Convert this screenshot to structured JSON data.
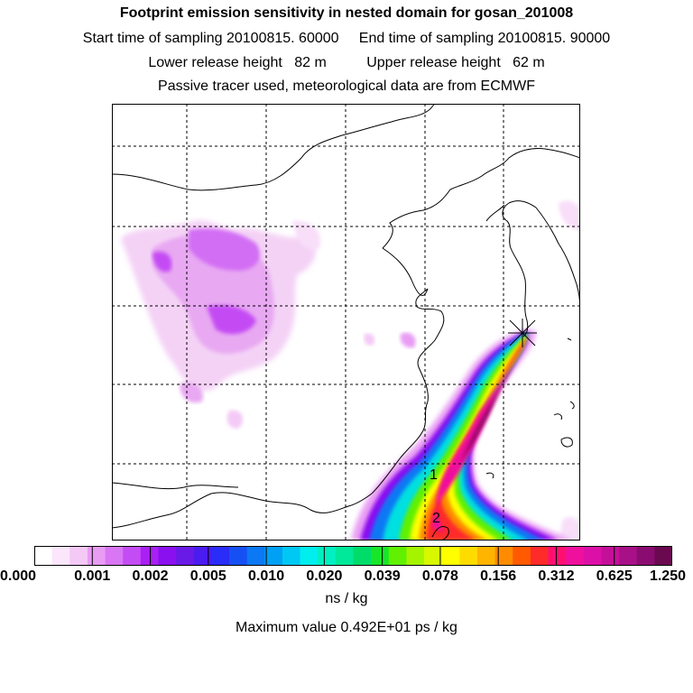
{
  "header": {
    "title": "Footprint emission sensitivity in nested domain for gosan_201008",
    "line2": "Start time of sampling 20100815. 60000     End time of sampling 20100815. 90000",
    "line3": "Lower release height   82 m          Upper release height   62 m",
    "line4": "Passive tracer used, meteorological data are from ECMWF"
  },
  "map": {
    "point_labels": [
      "1",
      "2"
    ],
    "release_marker": "release-point-cross"
  },
  "colorbar": {
    "tick_labels": [
      "0.000",
      "0.001",
      "0.002",
      "0.005",
      "0.010",
      "0.020",
      "0.039",
      "0.078",
      "0.156",
      "0.312",
      "0.625",
      "1.250"
    ],
    "colors": [
      "#ffffff",
      "#fbe6fb",
      "#f4c9f6",
      "#e89cf4",
      "#d876f4",
      "#c44cf4",
      "#a820f4",
      "#8a10f0",
      "#6a1ae6",
      "#4a1cf0",
      "#2a2cf8",
      "#1650f4",
      "#0c78f4",
      "#00a0f4",
      "#00c8f4",
      "#00eeee",
      "#00f0c0",
      "#00e89a",
      "#00dc6a",
      "#18e62a",
      "#60f000",
      "#a4f400",
      "#d8f800",
      "#ffff00",
      "#ffdc00",
      "#ffb400",
      "#ff8c00",
      "#ff5a00",
      "#ff2a2a",
      "#ff1070",
      "#f0109e",
      "#dc10a8",
      "#c41098",
      "#a81088",
      "#8a0c70",
      "#6a0850"
    ],
    "units": "ns / kg",
    "max_value_text": "Maximum value  0.492E+01 ps / kg"
  }
}
